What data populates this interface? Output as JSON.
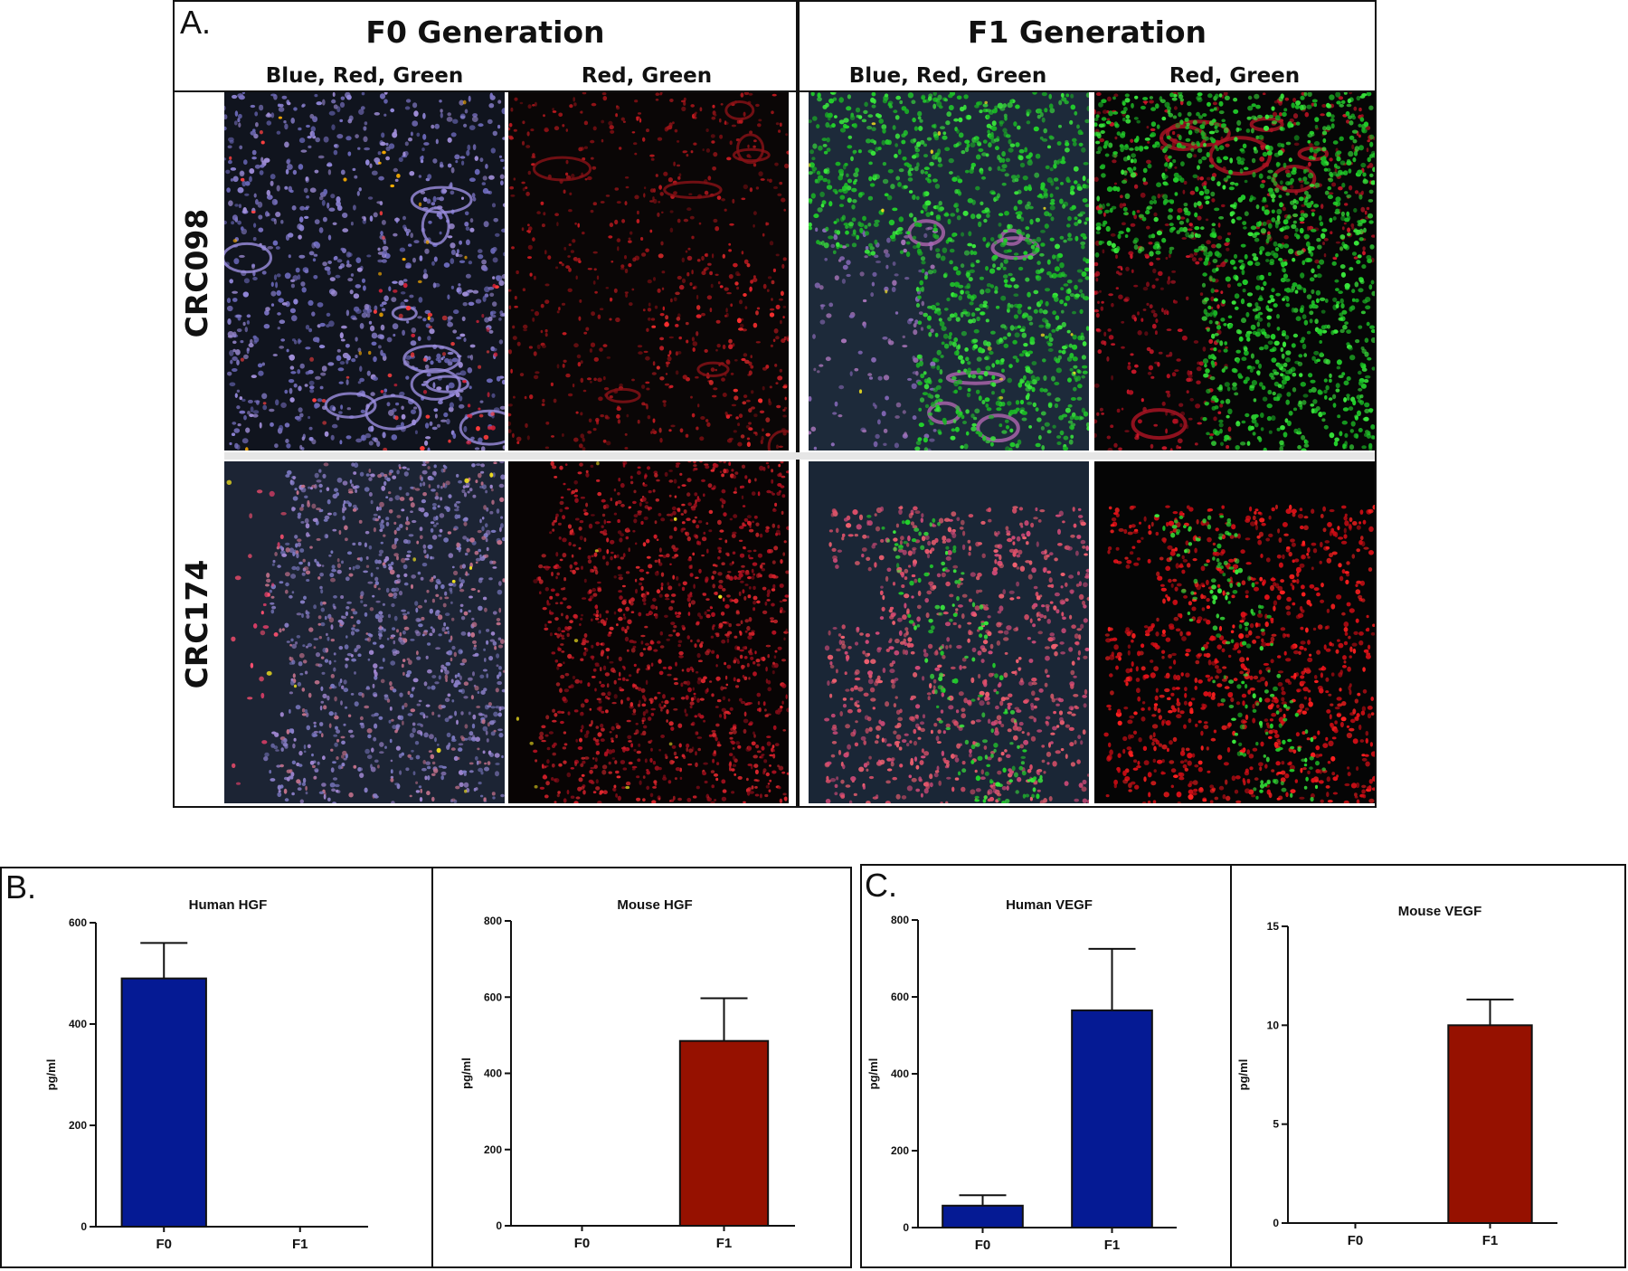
{
  "figure": {
    "panel_a": {
      "letter": "A.",
      "generations": [
        {
          "title": "F0 Generation",
          "columns": [
            "Blue, Red, Green",
            "Red, Green"
          ]
        },
        {
          "title": "F1 Generation",
          "columns": [
            "Blue, Red, Green",
            "Red, Green"
          ]
        }
      ],
      "rows": [
        "CRC098",
        "CRC174"
      ]
    },
    "panel_b": {
      "letter": "B."
    },
    "panel_c": {
      "letter": "C."
    }
  },
  "colors": {
    "bar_blue": "#051a94",
    "bar_red": "#961100",
    "frame": "#111111"
  },
  "chart_data": [
    {
      "type": "bar",
      "title": "Human HGF",
      "ylabel": "pg/ml",
      "xlabel": "",
      "categories": [
        "F0",
        "F1"
      ],
      "values": [
        490,
        0
      ],
      "errors": [
        70,
        0
      ],
      "colors": [
        "#051a94",
        "#961100"
      ],
      "ylim": [
        0,
        600
      ],
      "yticks": [
        0,
        200,
        400,
        600
      ]
    },
    {
      "type": "bar",
      "title": "Mouse HGF",
      "ylabel": "pg/ml",
      "xlabel": "",
      "categories": [
        "F0",
        "F1"
      ],
      "values": [
        0,
        485
      ],
      "errors": [
        0,
        112
      ],
      "colors": [
        "#051a94",
        "#961100"
      ],
      "ylim": [
        0,
        800
      ],
      "yticks": [
        0,
        200,
        400,
        600,
        800
      ]
    },
    {
      "type": "bar",
      "title": "Human VEGF",
      "ylabel": "pg/ml",
      "xlabel": "",
      "categories": [
        "F0",
        "F1"
      ],
      "values": [
        57,
        565
      ],
      "errors": [
        27,
        160
      ],
      "colors": [
        "#051a94",
        "#051a94"
      ],
      "ylim": [
        0,
        800
      ],
      "yticks": [
        0,
        200,
        400,
        600,
        800
      ]
    },
    {
      "type": "bar",
      "title": "Mouse VEGF",
      "ylabel": "pg/ml",
      "xlabel": "",
      "categories": [
        "F0",
        "F1"
      ],
      "values": [
        0,
        10
      ],
      "errors": [
        0,
        1.3
      ],
      "colors": [
        "#961100",
        "#961100"
      ],
      "ylim": [
        0,
        15
      ],
      "yticks": [
        0,
        5,
        10,
        15
      ]
    }
  ]
}
